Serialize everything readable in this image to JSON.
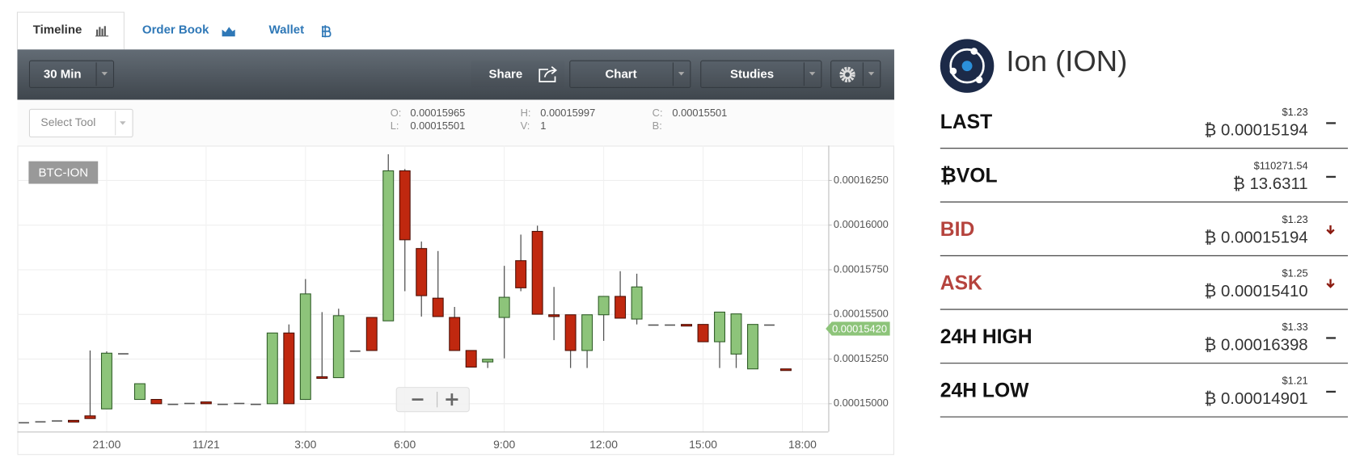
{
  "tabs": [
    "Timeline",
    "Order Book",
    "Wallet"
  ],
  "toolbar": {
    "interval": "30 Min",
    "share": "Share",
    "chart": "Chart",
    "studies": "Studies",
    "select_tool": "Select Tool"
  },
  "ohlc": [
    {
      "label": "O:",
      "value": "0.00015965"
    },
    {
      "label": "L:",
      "value": "0.00015501"
    },
    {
      "label": "H:",
      "value": "0.00015997"
    },
    {
      "label": "V:",
      "value": "1"
    },
    {
      "label": "C:",
      "value": "0.00015501"
    },
    {
      "label": "B:"
    }
  ],
  "chart_data": {
    "type": "candlestick",
    "symbol_label": "BTC-ION",
    "categories": [
      null,
      null,
      null,
      null,
      null,
      "21:00",
      null,
      null,
      null,
      null,
      null,
      "11/21",
      null,
      null,
      null,
      null,
      null,
      "3:00",
      null,
      null,
      null,
      null,
      null,
      "6:00",
      null,
      null,
      null,
      null,
      null,
      "9:00",
      null,
      null,
      null,
      null,
      null,
      "12:00",
      null,
      null,
      null,
      null,
      null,
      "15:00",
      null,
      null,
      null,
      null,
      null,
      "18:00"
    ],
    "open": [
      0.00014897,
      0.00014902,
      0.00014907,
      0.00014907,
      0.00014932,
      0.00014971,
      0.00015283,
      0.00015024,
      0.00015024,
      0.00015,
      0.00015005,
      0.0001501,
      0.00015,
      0.00015005,
      0.00015,
      0.00015,
      0.00015396,
      0.00015024,
      0.00015151,
      0.00015146,
      0.00015298,
      0.00015483,
      0.00015464,
      0.00016304,
      0.00015869,
      0.00015591,
      0.00015483,
      0.00015298,
      0.00015234,
      0.00015483,
      0.00015801,
      0.00015965,
      0.00015498,
      0.00015498,
      0.00015298,
      0.00015498,
      0.00015601,
      0.00015474,
      0.00015444,
      0.00015444,
      0.00015444,
      0.00015444,
      0.00015347,
      0.00015278,
      0.00015195,
      0.00015444,
      0.00015195,
      null
    ],
    "high": [
      0.00014897,
      0.00014902,
      0.00014907,
      0.00014907,
      0.00015298,
      0.00015293,
      0.00015283,
      0.00015112,
      0.00015024,
      0.00015,
      0.00015005,
      0.0001501,
      0.00015,
      0.00015005,
      0.00015,
      0.00015396,
      0.00015444,
      0.00015698,
      0.00015513,
      0.00015532,
      0.00015298,
      0.00015483,
      0.00016397,
      0.00016314,
      0.00015908,
      0.00015855,
      0.00015542,
      0.00015298,
      0.00015249,
      0.00015772,
      0.00015947,
      0.00015997,
      0.00015654,
      0.00015498,
      0.00015498,
      0.00015601,
      0.00015742,
      0.00015728,
      0.00015444,
      0.00015444,
      0.00015444,
      0.00015444,
      0.00015513,
      0.00015503,
      0.00015444,
      0.00015444,
      0.00015195,
      null
    ],
    "low": [
      0.00014897,
      0.00014902,
      0.00014907,
      0.00014897,
      0.00014917,
      0.00014971,
      0.00015283,
      0.00015024,
      0.00015,
      0.00015,
      0.00015005,
      0.00015,
      0.00015,
      0.00015005,
      0.00015,
      0.00015,
      0.00015,
      0.00015024,
      0.00015142,
      0.00015146,
      0.00015298,
      0.00015298,
      0.00015464,
      0.0001563,
      0.00015488,
      0.00015488,
      0.00015298,
      0.00015205,
      0.000152,
      0.00015254,
      0.0001563,
      0.00015501,
      0.00015356,
      0.000152,
      0.000152,
      0.00015352,
      0.00015479,
      0.00015444,
      0.00015444,
      0.00015444,
      0.00015435,
      0.00015347,
      0.000152,
      0.000152,
      0.00015195,
      0.00015444,
      0.00015186,
      null
    ],
    "close": [
      0.00014897,
      0.00014902,
      0.00014907,
      0.00014897,
      0.00014917,
      0.00015283,
      0.00015283,
      0.00015112,
      0.00015,
      0.00015,
      0.00015005,
      0.00015,
      0.00015,
      0.00015005,
      0.00015,
      0.00015396,
      0.00015,
      0.00015615,
      0.00015142,
      0.00015493,
      0.00015298,
      0.00015298,
      0.00016304,
      0.00015918,
      0.00015605,
      0.00015488,
      0.00015298,
      0.00015205,
      0.00015249,
      0.00015596,
      0.00015649,
      0.00015501,
      0.00015488,
      0.00015298,
      0.00015498,
      0.00015601,
      0.00015479,
      0.00015654,
      0.00015444,
      0.00015444,
      0.00015435,
      0.00015347,
      0.00015513,
      0.00015503,
      0.00015444,
      0.00015444,
      0.00015186,
      null
    ],
    "ylim": [
      0.00014844,
      0.00016445
    ],
    "yticks": [
      {
        "value": 0.00015,
        "label": "0.00015000"
      },
      {
        "value": 0.0001525,
        "label": "0.00015250"
      },
      {
        "value": 0.000155,
        "label": "0.00015500"
      },
      {
        "value": 0.0001575,
        "label": "0.00015750"
      },
      {
        "value": 0.00016,
        "label": "0.00016000"
      },
      {
        "value": 0.0001625,
        "label": "0.00016250"
      }
    ],
    "grid": true,
    "up_color": "#8dc47a",
    "down_color": "#c0280f",
    "last_price": {
      "value": 0.0001542,
      "label": "0.00015420"
    }
  },
  "ticker": {
    "title": "Ion (ION)",
    "rows": [
      {
        "label": "LAST",
        "usd": "$1.23",
        "btc": "₿ 0.00015194",
        "trend": "flat",
        "color": "#111111"
      },
      {
        "label": "₿VOL",
        "usd": "$110271.54",
        "btc": "₿ 13.6311",
        "trend": "flat",
        "color": "#111111"
      },
      {
        "label": "BID",
        "usd": "$1.23",
        "btc": "₿ 0.00015194",
        "trend": "down",
        "color": "#b5433d"
      },
      {
        "label": "ASK",
        "usd": "$1.25",
        "btc": "₿ 0.00015410",
        "trend": "down",
        "color": "#b5433d"
      },
      {
        "label": "24H HIGH",
        "usd": "$1.33",
        "btc": "₿ 0.00016398",
        "trend": "flat",
        "color": "#111111"
      },
      {
        "label": "24H LOW",
        "usd": "$1.21",
        "btc": "₿ 0.00014901",
        "trend": "flat",
        "color": "#111111"
      }
    ]
  }
}
